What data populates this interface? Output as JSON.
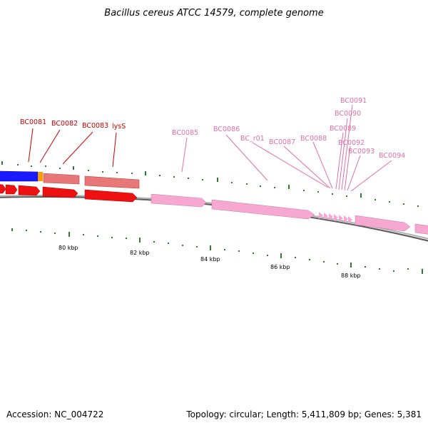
{
  "title": "Bacillus cereus ATCC 14579, complete genome",
  "footer": {
    "accession": "Accession: NC_004722",
    "summary": "Topology: circular; Length: 5,411,809 bp; Genes: 5,381"
  },
  "colors": {
    "backbone": "#8a8a8a",
    "tick": "#2e7d2e",
    "red_feature": "#ee1111",
    "light_red_feature": "#e87878",
    "pink_feature": "#f7a8d0",
    "blue_feature": "#1a1aff",
    "orange_feature": "#f5a000",
    "red_label": "#cc0000",
    "pink_label": "#e070a8"
  },
  "scale_labels": [
    "80 kbp",
    "82 kbp",
    "84 kbp",
    "86 kbp",
    "88 kbp"
  ],
  "gene_labels": [
    {
      "text": "BC0081",
      "group": "red"
    },
    {
      "text": "BC0082",
      "group": "red"
    },
    {
      "text": "BC0083",
      "group": "red"
    },
    {
      "text": "lysS",
      "group": "red"
    },
    {
      "text": "BC0085",
      "group": "pink"
    },
    {
      "text": "BC0086",
      "group": "pink"
    },
    {
      "text": "BC_r01",
      "group": "pink"
    },
    {
      "text": "BC0087",
      "group": "pink"
    },
    {
      "text": "BC0088",
      "group": "pink"
    },
    {
      "text": "BC0089",
      "group": "pink"
    },
    {
      "text": "BC0090",
      "group": "pink"
    },
    {
      "text": "BC0091",
      "group": "pink"
    },
    {
      "text": "BC0092",
      "group": "pink"
    },
    {
      "text": "BC0093",
      "group": "pink"
    },
    {
      "text": "BC0094",
      "group": "pink"
    }
  ]
}
